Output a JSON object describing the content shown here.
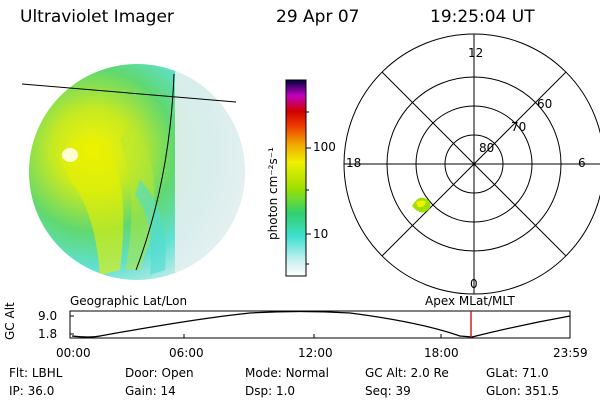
{
  "header": {
    "title": "Ultraviolet Imager",
    "date": "29 Apr 07",
    "time": "19:25:04 UT"
  },
  "colorbar": {
    "unit_label": "photon cm⁻²s⁻¹",
    "tick_labels": [
      "100",
      "10"
    ]
  },
  "polar_plot": {
    "mlt_labels": [
      "12",
      "18",
      "6",
      "0"
    ],
    "mlat_labels": [
      "60",
      "70",
      "80"
    ]
  },
  "labels": {
    "left_projection": "Geographic Lat/Lon",
    "right_projection": "Apex  MLat/MLT"
  },
  "altitude_plot": {
    "ylabel": "GC Alt",
    "yticks": [
      "9.0",
      "1.8"
    ],
    "xticks": [
      "00:00",
      "06:00",
      "12:00",
      "18:00",
      "23:59"
    ]
  },
  "info": {
    "row1": [
      {
        "label": "Flt:",
        "value": "LBHL"
      },
      {
        "label": "Door:",
        "value": "Open"
      },
      {
        "label": "Mode:",
        "value": "Normal"
      },
      {
        "label": "GC Alt:",
        "value": "2.0 Re"
      },
      {
        "label": "GLat:",
        "value": "71.0"
      }
    ],
    "row2": [
      {
        "label": "IP:",
        "value": "36.0"
      },
      {
        "label": "Gain:",
        "value": "14"
      },
      {
        "label": "Dsp:",
        "value": "1.0"
      },
      {
        "label": "Seq:",
        "value": "39"
      },
      {
        "label": "GLon:",
        "value": "351.5"
      }
    ]
  },
  "colors": {
    "current_time_marker": "#cc0000",
    "colormap": [
      "#ffffff",
      "#c8f0f0",
      "#40e0d0",
      "#30d070",
      "#a0e000",
      "#f0f000",
      "#f0a000",
      "#f04000",
      "#d00000",
      "#c000c0",
      "#000040"
    ]
  }
}
